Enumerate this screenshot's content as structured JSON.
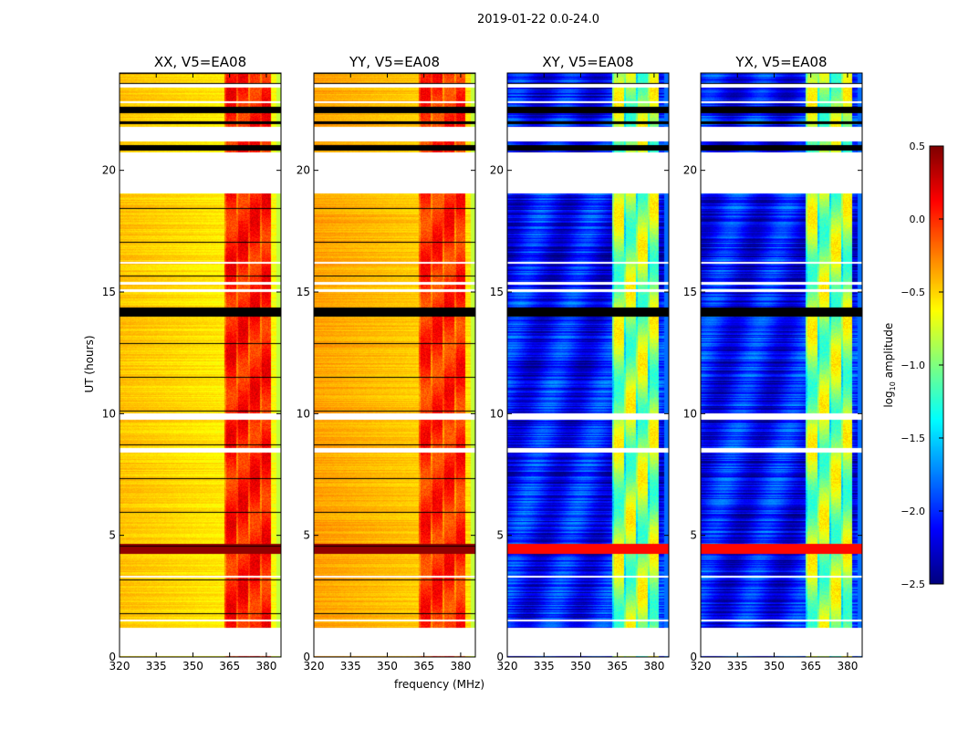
{
  "chart_data": {
    "type": "heatmap",
    "title": "2019-01-22 0.0-24.0",
    "xlabel": "frequency (MHz)",
    "ylabel": "UT (hours)",
    "xlim": [
      320,
      386
    ],
    "ylim": [
      0,
      24
    ],
    "xticks": [
      "320",
      "335",
      "350",
      "365",
      "380"
    ],
    "yticks": [
      "0",
      "5",
      "10",
      "15",
      "20"
    ],
    "panels": [
      {
        "title": "XX, V5=EA08",
        "product": "XX",
        "base_level": -0.45,
        "rfi_level": 0.05
      },
      {
        "title": "YY, V5=EA08",
        "product": "YY",
        "base_level": -0.35,
        "rfi_level": 0.0
      },
      {
        "title": "XY, V5=EA08",
        "product": "XY",
        "base_level": -2.1,
        "rfi_level": -0.9
      },
      {
        "title": "YX, V5=EA08",
        "product": "YX",
        "base_level": -2.1,
        "rfi_level": -0.9
      }
    ],
    "rfi_band_mhz": [
      363,
      382
    ],
    "flagged_white_hours": [
      [
        0.05,
        1.2
      ],
      [
        1.45,
        1.55
      ],
      [
        3.28,
        3.35
      ],
      [
        8.4,
        8.6
      ],
      [
        9.75,
        10.0
      ],
      [
        15.0,
        15.1
      ],
      [
        15.3,
        15.4
      ],
      [
        16.15,
        16.25
      ],
      [
        19.05,
        20.75
      ],
      [
        21.2,
        21.8
      ],
      [
        22.75,
        22.85
      ],
      [
        23.4,
        23.55
      ]
    ],
    "flagged_black_hours": [
      [
        14.0,
        14.35
      ],
      [
        20.8,
        21.05
      ],
      [
        21.9,
        22.0
      ],
      [
        22.35,
        22.6
      ],
      [
        23.5,
        23.6
      ]
    ],
    "strong_rfi_hours": [
      [
        4.25,
        4.65
      ]
    ],
    "colorbar": {
      "label_base": "log",
      "label_sub": "10",
      "label_rest": " amplitude",
      "range": [
        -2.5,
        0.5
      ],
      "ticks": [
        "0.5",
        "0.0",
        "−0.5",
        "−1.0",
        "−1.5",
        "−2.0",
        "−2.5"
      ],
      "colormap": "jet"
    }
  }
}
